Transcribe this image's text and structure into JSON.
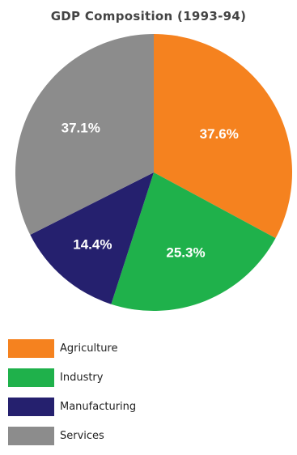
{
  "chart_data": {
    "type": "pie",
    "title": "GDP Composition (1993-94)",
    "categories": [
      "Agriculture",
      "Industry",
      "Manufacturing",
      "Services"
    ],
    "values": [
      37.6,
      25.3,
      14.4,
      37.1
    ],
    "labels": [
      "37.6%",
      "25.3%",
      "14.4%",
      "37.1%"
    ],
    "colors": [
      "#f5821f",
      "#1fb14b",
      "#25206e",
      "#8c8c8c"
    ],
    "legend_position": "bottom-left"
  }
}
